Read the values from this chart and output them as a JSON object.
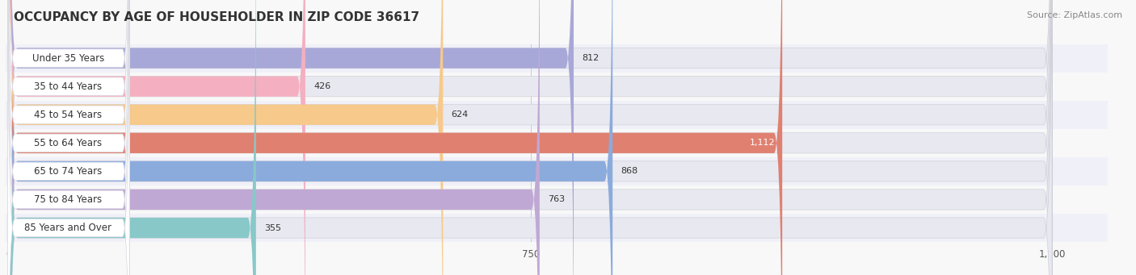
{
  "title": "OCCUPANCY BY AGE OF HOUSEHOLDER IN ZIP CODE 36617",
  "source": "Source: ZipAtlas.com",
  "categories": [
    "Under 35 Years",
    "35 to 44 Years",
    "45 to 54 Years",
    "55 to 64 Years",
    "65 to 74 Years",
    "75 to 84 Years",
    "85 Years and Over"
  ],
  "values": [
    812,
    426,
    624,
    1112,
    868,
    763,
    355
  ],
  "bar_colors": [
    "#a8a8d8",
    "#f4afc0",
    "#f7c98a",
    "#e08070",
    "#8aabdc",
    "#c0a8d4",
    "#88c8c8"
  ],
  "bar_bg_color": "#e8e8f0",
  "row_bg_colors": [
    "#f0f0f8",
    "#f8f8f8"
  ],
  "xlim_max": 1500,
  "xticks": [
    0,
    750,
    1500
  ],
  "xtick_labels": [
    "0",
    "750",
    "1,500"
  ],
  "value_labels": [
    "812",
    "426",
    "624",
    "1,112",
    "868",
    "763",
    "355"
  ],
  "label_white": [
    false,
    false,
    false,
    true,
    false,
    false,
    false
  ],
  "fig_width": 14.06,
  "fig_height": 3.41,
  "dpi": 100,
  "background_color": "#f8f8f8",
  "title_fontsize": 11,
  "source_fontsize": 8,
  "bar_label_fontsize": 8.5,
  "value_fontsize": 8,
  "white_pill_color": "#ffffff",
  "pill_text_color": "#333333"
}
